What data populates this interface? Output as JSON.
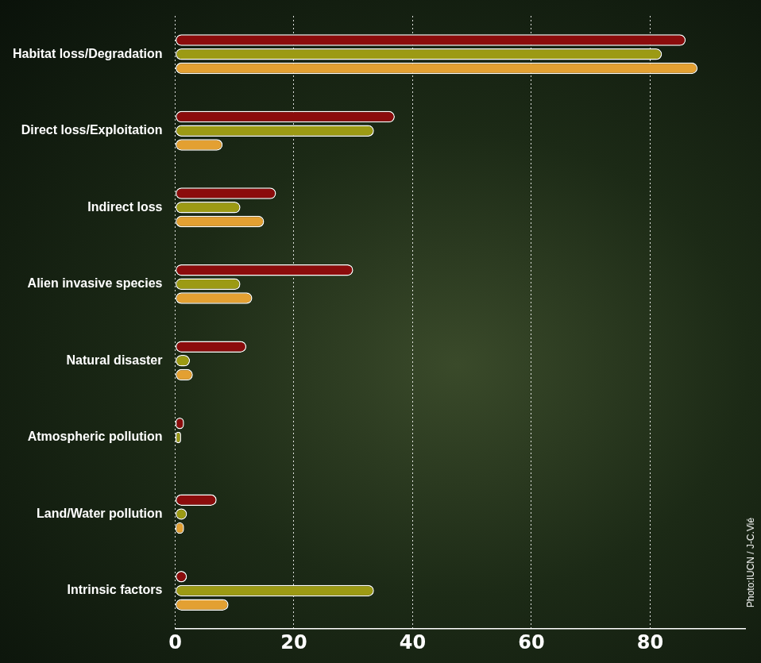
{
  "chart_data": {
    "type": "bar",
    "orientation": "horizontal",
    "categories": [
      "Habitat loss/Degradation",
      "Direct loss/Exploitation",
      "Indirect loss",
      "Alien invasive species",
      "Natural disaster",
      "Atmospheric pollution",
      "Land/Water pollution",
      "Intrinsic factors"
    ],
    "series": [
      {
        "color": "#8b0c0c",
        "values": [
          86,
          37,
          17,
          30,
          12,
          1.5,
          7,
          2
        ]
      },
      {
        "color": "#9c9a14",
        "values": [
          82,
          33.5,
          11,
          11,
          2.5,
          1,
          2,
          33.5
        ]
      },
      {
        "color": "#e3a032",
        "values": [
          88,
          8,
          15,
          13,
          3,
          0,
          1.5,
          9
        ]
      }
    ],
    "xlim": [
      0,
      96
    ],
    "xticks": [
      0,
      20,
      40,
      60,
      80
    ],
    "grid": true,
    "source": "Photo:IUCN / J-C.Vié"
  }
}
